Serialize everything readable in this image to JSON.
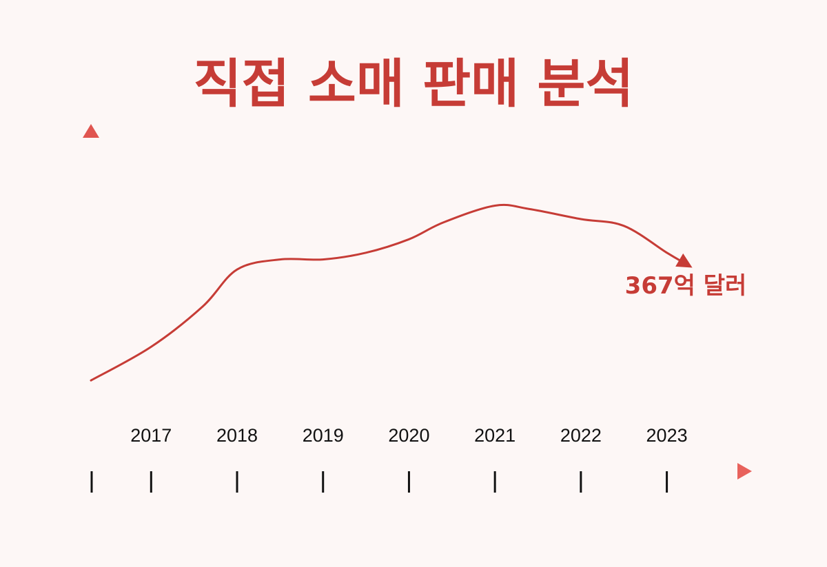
{
  "chart_data": {
    "type": "line",
    "title": "직접 소매 판매 분석",
    "categories": [
      "2017",
      "2018",
      "2019",
      "2020",
      "2021",
      "2022",
      "2023"
    ],
    "series": [
      {
        "values": [
          {
            "x": 2016.3,
            "y": 27
          },
          {
            "x": 2017.0,
            "y": 37
          },
          {
            "x": 2017.6,
            "y": 49
          },
          {
            "x": 2018.0,
            "y": 60
          },
          {
            "x": 2018.5,
            "y": 63
          },
          {
            "x": 2019.0,
            "y": 63
          },
          {
            "x": 2019.5,
            "y": 65
          },
          {
            "x": 2020.0,
            "y": 69
          },
          {
            "x": 2020.4,
            "y": 74
          },
          {
            "x": 2021.0,
            "y": 79
          },
          {
            "x": 2021.4,
            "y": 78
          },
          {
            "x": 2022.0,
            "y": 75
          },
          {
            "x": 2022.5,
            "y": 73
          },
          {
            "x": 2023.0,
            "y": 65
          },
          {
            "x": 2023.2,
            "y": 62
          }
        ]
      }
    ],
    "end_label": "367억 달러",
    "xlim": [
      2016.3,
      2023.3
    ],
    "ylim": [
      0,
      100
    ],
    "grid": false,
    "colors": {
      "accent": "#c63c36",
      "axis_dark": "#9e1b1b",
      "axis_light": "#e8625c",
      "tick": "#111111",
      "background": "#fdf7f6"
    }
  }
}
